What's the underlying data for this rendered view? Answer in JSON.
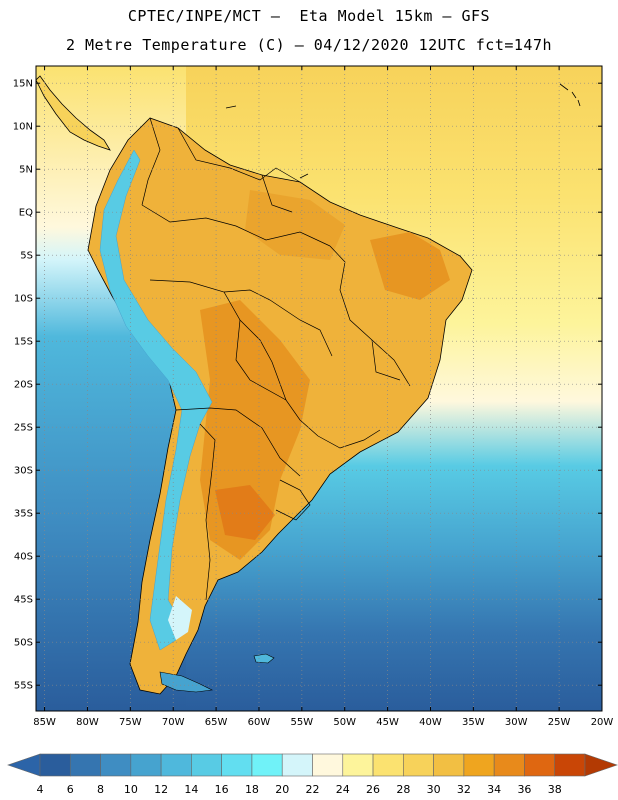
{
  "header": {
    "line1": "CPTEC/INPE/MCT –  Eta Model 15km – GFS",
    "line2": "2 Metre Temperature (C) – 04/12/2020 12UTC fct=147h"
  },
  "map": {
    "lat_labels": [
      "15N",
      "10N",
      "5N",
      "EQ",
      "5S",
      "10S",
      "15S",
      "20S",
      "25S",
      "30S",
      "35S",
      "40S",
      "45S",
      "50S",
      "55S"
    ],
    "lat_values": [
      15,
      10,
      5,
      0,
      -5,
      -10,
      -15,
      -20,
      -25,
      -30,
      -35,
      -40,
      -45,
      -50,
      -55
    ],
    "lon_labels": [
      "85W",
      "80W",
      "75W",
      "70W",
      "65W",
      "60W",
      "55W",
      "50W",
      "45W",
      "40W",
      "35W",
      "30W",
      "25W",
      "20W"
    ],
    "lon_values": [
      -85,
      -80,
      -75,
      -70,
      -65,
      -60,
      -55,
      -50,
      -45,
      -40,
      -35,
      -30,
      -25,
      -20
    ],
    "lat_range": [
      -58,
      17
    ],
    "lon_range": [
      -86,
      -20
    ]
  },
  "colorbar": {
    "labels": [
      "4",
      "6",
      "8",
      "10",
      "12",
      "14",
      "16",
      "18",
      "20",
      "22",
      "24",
      "26",
      "28",
      "30",
      "32",
      "34",
      "36",
      "38"
    ],
    "colors": [
      "#2a5d9c",
      "#3575b0",
      "#3f8dc2",
      "#46a3cf",
      "#4fb8dc",
      "#58cbe4",
      "#62def0",
      "#70f2f8",
      "#d4f5fa",
      "#fff8dd",
      "#fdf49b",
      "#fbe270",
      "#f7d25a",
      "#f2bf43",
      "#efa51f",
      "#e88a1b",
      "#df6711",
      "#c94606"
    ],
    "low_color": "#2c64a8",
    "high_color": "#b33a03"
  }
}
